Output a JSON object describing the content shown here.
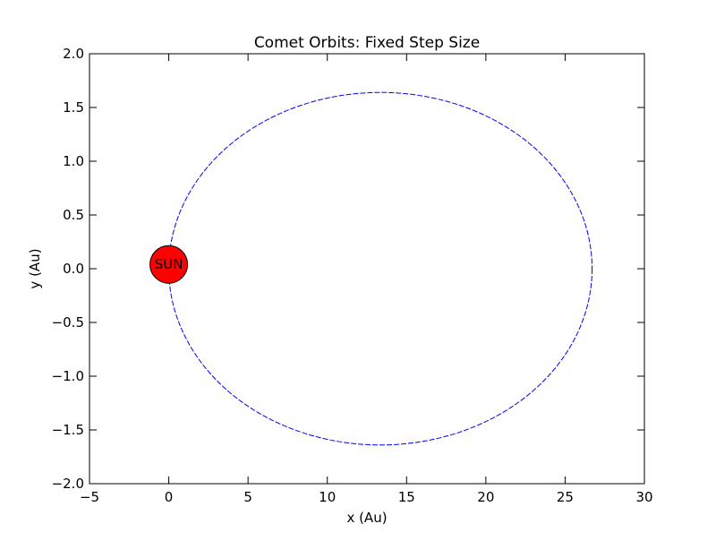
{
  "chart_data": {
    "type": "line",
    "title": "Comet Orbits: Fixed Step Size",
    "xlabel": "x (Au)",
    "ylabel": "y (Au)",
    "xlim": [
      -5,
      30
    ],
    "ylim": [
      -2.0,
      2.0
    ],
    "grid": false,
    "x_ticks": [
      -5,
      0,
      5,
      10,
      15,
      20,
      25,
      30
    ],
    "y_ticks": [
      -2.0,
      -1.5,
      -1.0,
      -0.5,
      0.0,
      0.5,
      1.0,
      1.5,
      2.0
    ],
    "x_tick_labels": [
      "−5",
      "0",
      "5",
      "10",
      "15",
      "20",
      "25",
      "30"
    ],
    "y_tick_labels": [
      "−2.0",
      "−1.5",
      "−1.0",
      "−0.5",
      "0.0",
      "0.5",
      "1.0",
      "1.5",
      "2.0"
    ],
    "series": [
      {
        "style": "dashed",
        "color": "#0000ff",
        "orbit": {
          "x_min": 0,
          "x_max": 26.7,
          "y_max": 1.64,
          "y_min": -1.64
        }
      }
    ],
    "sun": {
      "label": "SUN",
      "x": 0,
      "y": 0.04,
      "color": "#ff0000"
    }
  }
}
